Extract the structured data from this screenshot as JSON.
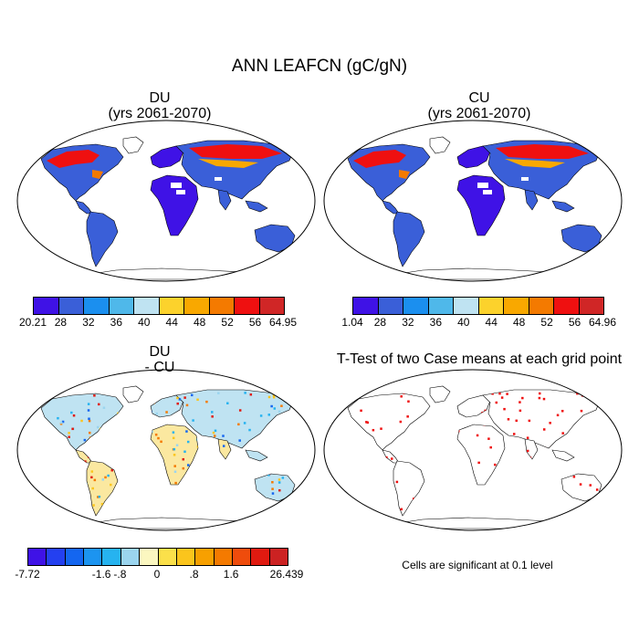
{
  "figure": {
    "title": "ANN LEAFCN (gC/gN)"
  },
  "panels": [
    {
      "title_line1": "DU",
      "title_line2": "(yrs 2061-2070)",
      "colorbar": {
        "colors": [
          "#3f12e6",
          "#3a5fd8",
          "#1b8fef",
          "#4fb8ea",
          "#bfe3f2",
          "#fcd22c",
          "#f9a800",
          "#f47a00",
          "#ef1010",
          "#d02626"
        ],
        "labels": [
          "20.21",
          "28",
          "32",
          "36",
          "40",
          "44",
          "48",
          "52",
          "56",
          "64.95"
        ]
      }
    },
    {
      "title_line1": "CU",
      "title_line2": "(yrs 2061-2070)",
      "colorbar": {
        "colors": [
          "#3f12e6",
          "#3a5fd8",
          "#1b8fef",
          "#4fb8ea",
          "#bfe3f2",
          "#fcd22c",
          "#f9a800",
          "#f47a00",
          "#ef1010",
          "#d02626"
        ],
        "labels": [
          "1.04",
          "28",
          "32",
          "36",
          "40",
          "44",
          "48",
          "52",
          "56",
          "64.96"
        ]
      }
    },
    {
      "title_line1": "DU",
      "title_line2": "- CU",
      "colorbar": {
        "colors": [
          "#3f12e6",
          "#2440f0",
          "#1466f0",
          "#1c94f0",
          "#26b3f0",
          "#9bd5ef",
          "#fbf7c0",
          "#fbe04a",
          "#fbc51c",
          "#f7a000",
          "#f47a00",
          "#ef4c0c",
          "#e01a10",
          "#cc2222"
        ],
        "labels": [
          "-7.72",
          "-1.6",
          "-.8",
          "0",
          ".8",
          "1.6",
          "26.439"
        ]
      }
    },
    {
      "title_line1": "T-Test of two Case means at each grid point",
      "note": "Cells are significant at 0.1 level"
    }
  ]
}
